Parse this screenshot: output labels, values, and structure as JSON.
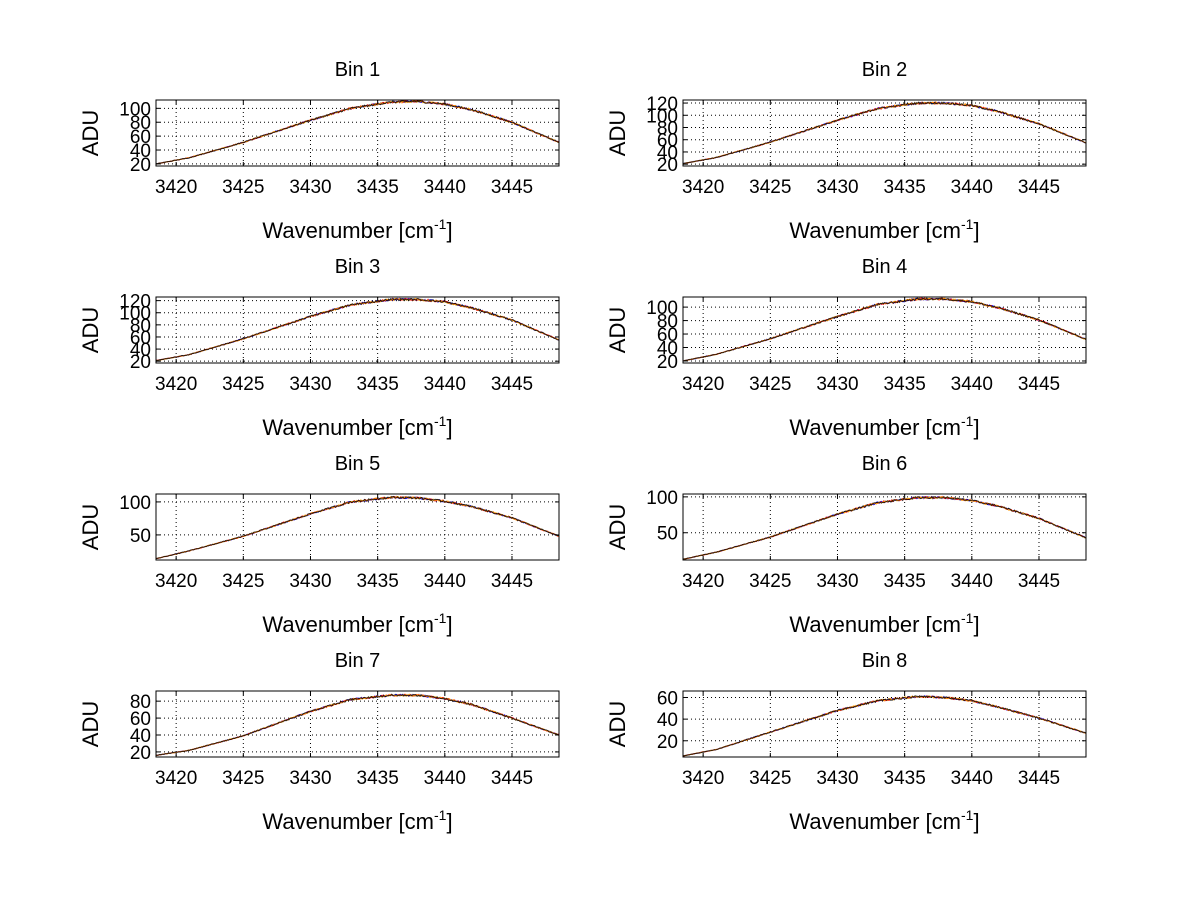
{
  "figure": {
    "background": "#ffffff"
  },
  "series_colors": [
    "#0000ff",
    "#ff0000",
    "#ffa500",
    "#000000"
  ],
  "chart_data": [
    {
      "type": "line",
      "title": "Bin 1",
      "xlabel": "Wavenumber [cm",
      "xlabel_sup": "-1",
      "xlabel_close": "]",
      "ylabel": "ADU",
      "xlim": [
        3418.5,
        3448.5
      ],
      "ylim": [
        17,
        112
      ],
      "xticks": [
        3420,
        3425,
        3430,
        3435,
        3440,
        3445
      ],
      "yticks": [
        20,
        40,
        60,
        80,
        100
      ],
      "grid": true,
      "profile": {
        "x": [
          3418.5,
          3421,
          3425,
          3430,
          3433,
          3436,
          3438,
          3440,
          3442,
          3445,
          3448.5
        ],
        "y": [
          20,
          29,
          51,
          83,
          100,
          109,
          110,
          106,
          98,
          80,
          51
        ]
      }
    },
    {
      "type": "line",
      "title": "Bin 2",
      "xlabel": "Wavenumber [cm",
      "xlabel_sup": "-1",
      "xlabel_close": "]",
      "ylabel": "ADU",
      "xlim": [
        3418.5,
        3448.5
      ],
      "ylim": [
        17,
        125
      ],
      "xticks": [
        3420,
        3425,
        3430,
        3435,
        3440,
        3445
      ],
      "yticks": [
        20,
        40,
        60,
        80,
        100,
        120
      ],
      "grid": true,
      "profile": {
        "x": [
          3418.5,
          3421,
          3425,
          3430,
          3433,
          3436,
          3438,
          3440,
          3442,
          3445,
          3448.5
        ],
        "y": [
          21,
          31,
          56,
          92,
          111,
          120,
          120,
          116,
          106,
          86,
          55
        ]
      }
    },
    {
      "type": "line",
      "title": "Bin 3",
      "xlabel": "Wavenumber [cm",
      "xlabel_sup": "-1",
      "xlabel_close": "]",
      "ylabel": "ADU",
      "xlim": [
        3418.5,
        3448.5
      ],
      "ylim": [
        17,
        126
      ],
      "xticks": [
        3420,
        3425,
        3430,
        3435,
        3440,
        3445
      ],
      "yticks": [
        20,
        40,
        60,
        80,
        100,
        120
      ],
      "grid": true,
      "profile": {
        "x": [
          3418.5,
          3421,
          3425,
          3430,
          3433,
          3436,
          3438,
          3440,
          3442,
          3445,
          3448.5
        ],
        "y": [
          21,
          31,
          57,
          94,
          113,
          122,
          122,
          118,
          108,
          88,
          55
        ]
      }
    },
    {
      "type": "line",
      "title": "Bin 4",
      "xlabel": "Wavenumber [cm",
      "xlabel_sup": "-1",
      "xlabel_close": "]",
      "ylabel": "ADU",
      "xlim": [
        3418.5,
        3448.5
      ],
      "ylim": [
        17,
        115
      ],
      "xticks": [
        3420,
        3425,
        3430,
        3435,
        3440,
        3445
      ],
      "yticks": [
        20,
        40,
        60,
        80,
        100
      ],
      "grid": true,
      "profile": {
        "x": [
          3418.5,
          3421,
          3425,
          3430,
          3433,
          3436,
          3438,
          3440,
          3442,
          3445,
          3448.5
        ],
        "y": [
          20,
          30,
          53,
          86,
          104,
          112,
          112,
          108,
          99,
          81,
          52
        ]
      }
    },
    {
      "type": "line",
      "title": "Bin 5",
      "xlabel": "Wavenumber [cm",
      "xlabel_sup": "-1",
      "xlabel_close": "]",
      "ylabel": "ADU",
      "xlim": [
        3418.5,
        3448.5
      ],
      "ylim": [
        12,
        112
      ],
      "xticks": [
        3420,
        3425,
        3430,
        3435,
        3440,
        3445
      ],
      "yticks": [
        50,
        100
      ],
      "grid": true,
      "profile": {
        "x": [
          3418.5,
          3421,
          3425,
          3430,
          3433,
          3436,
          3438,
          3440,
          3442,
          3445,
          3448.5
        ],
        "y": [
          14,
          26,
          48,
          82,
          100,
          107,
          106,
          101,
          93,
          76,
          48
        ]
      }
    },
    {
      "type": "line",
      "title": "Bin 6",
      "xlabel": "Wavenumber [cm",
      "xlabel_sup": "-1",
      "xlabel_close": "]",
      "ylabel": "ADU",
      "xlim": [
        3418.5,
        3448.5
      ],
      "ylim": [
        12,
        104
      ],
      "xticks": [
        3420,
        3425,
        3430,
        3435,
        3440,
        3445
      ],
      "yticks": [
        50,
        100
      ],
      "grid": true,
      "profile": {
        "x": [
          3418.5,
          3421,
          3425,
          3430,
          3433,
          3436,
          3438,
          3440,
          3442,
          3445,
          3448.5
        ],
        "y": [
          13,
          23,
          44,
          76,
          92,
          99,
          99,
          95,
          87,
          70,
          43
        ]
      }
    },
    {
      "type": "line",
      "title": "Bin 7",
      "xlabel": "Wavenumber [cm",
      "xlabel_sup": "-1",
      "xlabel_close": "]",
      "ylabel": "ADU",
      "xlim": [
        3418.5,
        3448.5
      ],
      "ylim": [
        14,
        92
      ],
      "xticks": [
        3420,
        3425,
        3430,
        3435,
        3440,
        3445
      ],
      "yticks": [
        20,
        40,
        60,
        80
      ],
      "grid": true,
      "profile": {
        "x": [
          3418.5,
          3421,
          3425,
          3430,
          3433,
          3436,
          3438,
          3440,
          3442,
          3445,
          3448.5
        ],
        "y": [
          16,
          22,
          39,
          68,
          82,
          87,
          87,
          83,
          76,
          60,
          40
        ]
      }
    },
    {
      "type": "line",
      "title": "Bin 8",
      "xlabel": "Wavenumber [cm",
      "xlabel_sup": "-1",
      "xlabel_close": "]",
      "ylabel": "ADU",
      "xlim": [
        3418.5,
        3448.5
      ],
      "ylim": [
        5,
        66
      ],
      "xticks": [
        3420,
        3425,
        3430,
        3435,
        3440,
        3445
      ],
      "yticks": [
        20,
        40,
        60
      ],
      "grid": true,
      "profile": {
        "x": [
          3418.5,
          3421,
          3425,
          3430,
          3433,
          3436,
          3438,
          3440,
          3442,
          3445,
          3448.5
        ],
        "y": [
          6,
          12,
          28,
          48,
          57,
          61,
          60,
          57,
          51,
          41,
          27
        ]
      }
    }
  ]
}
